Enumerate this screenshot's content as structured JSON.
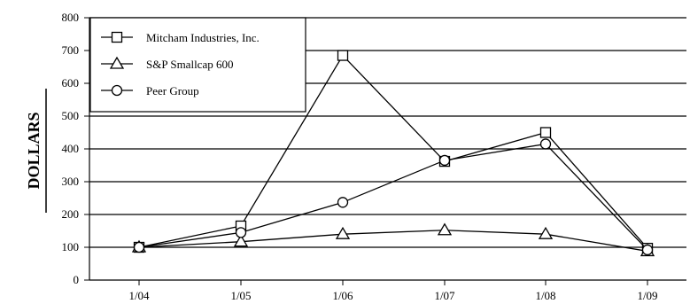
{
  "chart_data": {
    "type": "line",
    "ylabel": "DOLLARS",
    "xlabel": "",
    "title": "",
    "categories": [
      "1/04",
      "1/05",
      "1/06",
      "1/07",
      "1/08",
      "1/09"
    ],
    "ylim": [
      0,
      800
    ],
    "yticks": [
      0,
      100,
      200,
      300,
      400,
      500,
      600,
      700,
      800
    ],
    "grid": "horizontal",
    "legend_position": "top-left",
    "series": [
      {
        "name": "Mitcham Industries, Inc.",
        "marker": "square",
        "values": [
          100,
          165,
          685,
          362,
          450,
          97
        ]
      },
      {
        "name": "S&P Smallcap 600",
        "marker": "triangle",
        "values": [
          100,
          117,
          140,
          152,
          140,
          88
        ]
      },
      {
        "name": "Peer Group",
        "marker": "circle",
        "values": [
          100,
          145,
          237,
          365,
          415,
          92
        ]
      }
    ]
  }
}
